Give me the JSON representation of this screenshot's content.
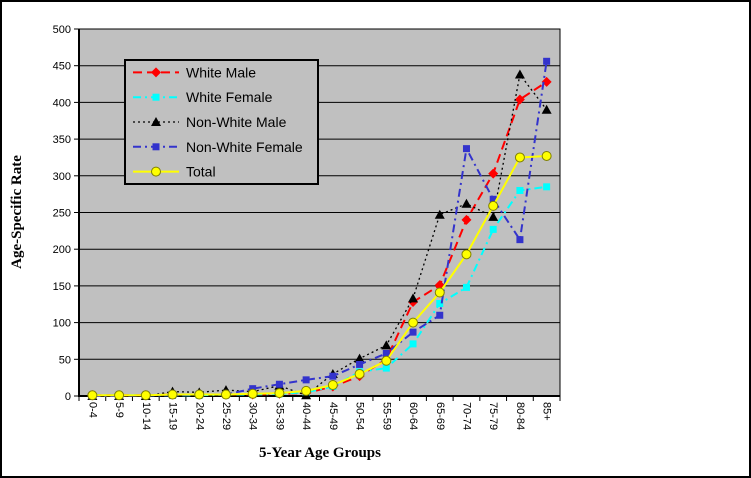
{
  "chart_data": {
    "type": "line",
    "title": "",
    "xlabel": "5-Year Age Groups",
    "ylabel": "Age-Specific Rate",
    "ylim": [
      0,
      500
    ],
    "y_tick_step": 50,
    "y_ticks": [
      0,
      50,
      100,
      150,
      200,
      250,
      300,
      350,
      400,
      450,
      500
    ],
    "grid": "horizontal",
    "plot_bg_color": "#C0C0C0",
    "legend_position": "top-left-inside",
    "categories": [
      "0-4",
      "5-9",
      "10-14",
      "15-19",
      "20-24",
      "25-29",
      "30-34",
      "35-39",
      "40-44",
      "45-49",
      "50-54",
      "55-59",
      "60-64",
      "65-69",
      "70-74",
      "75-79",
      "80-84",
      "85+"
    ],
    "series": [
      {
        "name": "White Male",
        "color": "#FF0000",
        "line_style": "dashed",
        "marker": "diamond",
        "values": [
          1,
          1,
          1,
          2,
          2,
          2,
          2,
          3,
          4,
          13,
          27,
          50,
          128,
          151,
          240,
          303,
          404,
          428
        ]
      },
      {
        "name": "White Female",
        "color": "#00FFFF",
        "line_style": "dash-dot",
        "marker": "square",
        "values": [
          1,
          1,
          1,
          1,
          1,
          2,
          2,
          3,
          5,
          13,
          33,
          38,
          71,
          126,
          148,
          227,
          280,
          285
        ]
      },
      {
        "name": "Non-White Male",
        "color": "#000000",
        "line_style": "dotted",
        "marker": "triangle",
        "values": [
          0,
          0,
          0,
          6,
          5,
          8,
          6,
          14,
          1,
          30,
          51,
          69,
          133,
          247,
          262,
          244,
          438,
          390
        ]
      },
      {
        "name": "Non-White Female",
        "color": "#3333CC",
        "line_style": "dash-dot",
        "marker": "square",
        "values": [
          0,
          0,
          1,
          1,
          2,
          2,
          10,
          16,
          22,
          27,
          43,
          58,
          87,
          110,
          337,
          268,
          213,
          456
        ]
      },
      {
        "name": "Total",
        "color": "#FFFF00",
        "line_style": "solid",
        "marker": "circle",
        "values": [
          1,
          1,
          1,
          2,
          2,
          2,
          3,
          4,
          7,
          15,
          30,
          48,
          100,
          141,
          193,
          259,
          325,
          327
        ]
      }
    ]
  }
}
